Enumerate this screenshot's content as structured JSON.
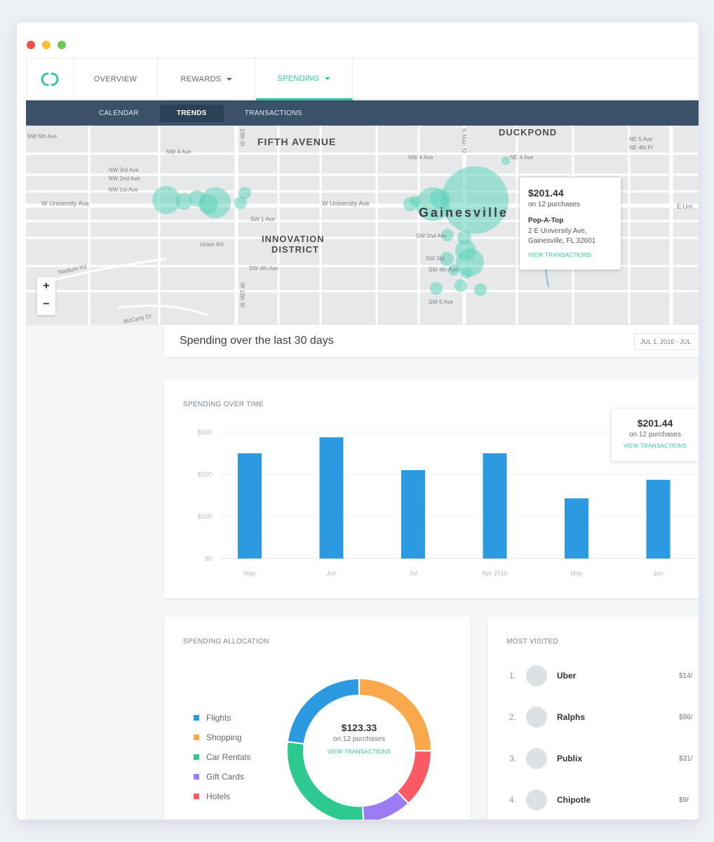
{
  "topnav": {
    "overview": "OVERVIEW",
    "rewards": "REWARDS",
    "spending": "SPENDING"
  },
  "subnav": {
    "calendar": "CALENDAR",
    "trends": "TRENDS",
    "transactions": "TRANSACTIONS"
  },
  "map": {
    "labels": {
      "fifth": "FIFTH AVENUE",
      "duckpond": "DUCKPOND",
      "innovation1": "INNOVATION",
      "innovation2": "DISTRICT",
      "city": "Gainesville",
      "univ1": "W University Ave",
      "univ2": "W University Ave",
      "ne5": "NE 5 Ave",
      "ne4": "NE 4th Pl",
      "eu": "E Uni",
      "nw5": "NW 5th Ave",
      "nw4": "NW 4 Ave",
      "nw3": "NW 3rd Ave",
      "nw2": "NW 2nd Ave",
      "nw1": "NW 1st Ave",
      "nw4b": "NW 4 Ave",
      "sw1": "SW 1 Ave",
      "sw2": "SW 2nd Ave",
      "sw3": "SW 3rd",
      "sw4": "SW 4th Ave",
      "sw4b": "SW 4th Ave",
      "sw6": "SW 6 Ave",
      "stadium": "Stadium Rd",
      "union": "Union Rd",
      "mccarty": "McCarty Dr",
      "main": "N Main St",
      "ne4b": "NE 4 Ave",
      "w13": "W 13th St",
      "fifth_st": "13th St"
    },
    "zoom_in": "+",
    "zoom_out": "−",
    "tooltip": {
      "amount": "$201.44",
      "purchases": "on 12 purchases",
      "merchant": "Pop-A-Top",
      "address1": "2 E University Ave,",
      "address2": "Gainesville, FL 32601",
      "link": "VIEW TRANSACTIONS"
    }
  },
  "header": {
    "title": "Spending over the last 30 days",
    "date": "JUL 1, 2016  -  JUL"
  },
  "chart_data": {
    "type": "bar",
    "title": "SPENDING OVER TIME",
    "categories": [
      "May",
      "Jun",
      "Jul",
      "Apr 2016",
      "May",
      "Jun"
    ],
    "values": [
      250,
      288,
      210,
      250,
      143,
      187
    ],
    "ylim": [
      0,
      300
    ],
    "yticks": [
      {
        "v": 0,
        "label": "$0"
      },
      {
        "v": 100,
        "label": "$100"
      },
      {
        "v": 200,
        "label": "$200"
      },
      {
        "v": 300,
        "label": "$300"
      }
    ],
    "color": "#2b9ae0",
    "tooltip": {
      "amount": "$201.44",
      "purchases": "on 12 purchases",
      "link": "VIEW TRANSACTIONS"
    }
  },
  "allocation": {
    "title": "SPENDING ALLOCATION",
    "items": [
      {
        "label": "Flights",
        "color": "#2b9ae0",
        "value": 23
      },
      {
        "label": "Shopping",
        "color": "#f9a94b",
        "value": 25
      },
      {
        "label": "Car Rentals",
        "color": "#2ec990",
        "value": 28
      },
      {
        "label": "Gift Cards",
        "color": "#9b7cf5",
        "value": 11
      },
      {
        "label": "Hotels",
        "color": "#f95a64",
        "value": 13
      }
    ],
    "order": [
      1,
      4,
      3,
      2,
      0
    ],
    "center_amount": "$123.33",
    "center_sub": "on 12 purchases",
    "center_link": "VIEW TRANSACTIONS"
  },
  "most_visited": {
    "title": "MOST VISITED",
    "items": [
      {
        "num": "1.",
        "name": "Uber",
        "amount": "$14/"
      },
      {
        "num": "2.",
        "name": "Ralphs",
        "amount": "$96/"
      },
      {
        "num": "3.",
        "name": "Publix",
        "amount": "$31/"
      },
      {
        "num": "4.",
        "name": "Chipotle",
        "amount": "$9/"
      }
    ]
  },
  "colors": {
    "accent": "#2ec9a0",
    "subnav": "#3b5169",
    "bar": "#2b9ae0",
    "bubble": "#5fd3bc"
  }
}
